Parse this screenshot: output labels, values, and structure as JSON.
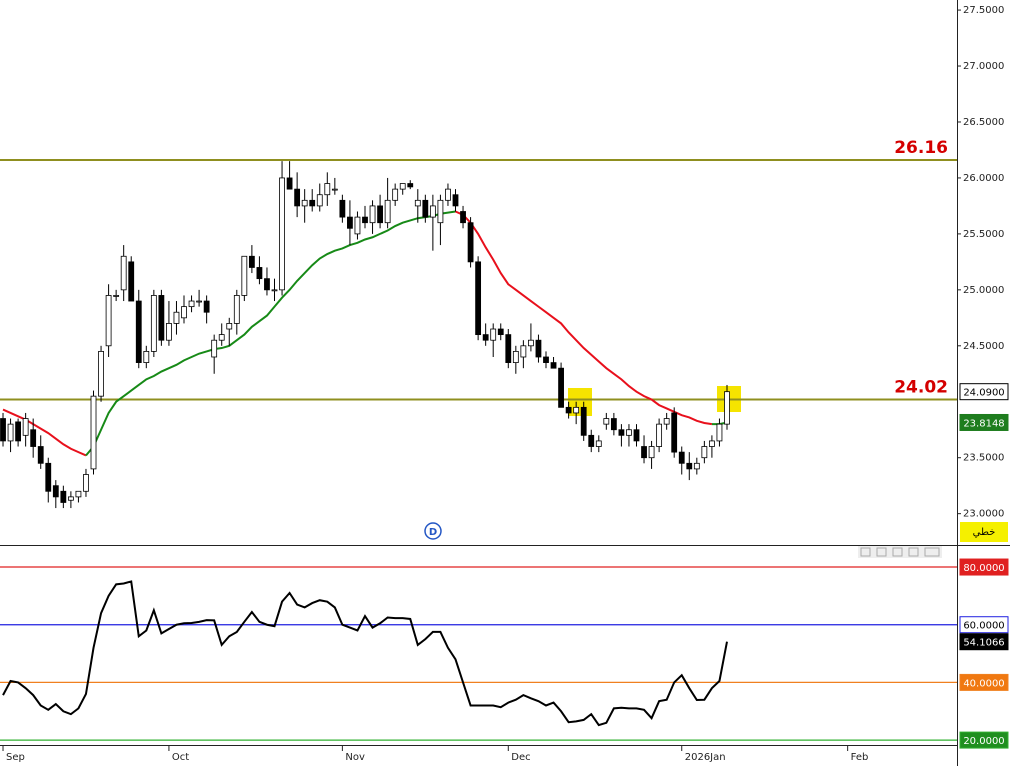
{
  "chart_data": [
    {
      "type": "candlestick",
      "categories": [
        null,
        null,
        null,
        null,
        null,
        null,
        null,
        null,
        null,
        null,
        null,
        null,
        null,
        null,
        null,
        null,
        null,
        null,
        null,
        null,
        null,
        null,
        null,
        null,
        null,
        null,
        null,
        null,
        null,
        null,
        null,
        null,
        null,
        null,
        null,
        null,
        null,
        null,
        null,
        null,
        null,
        null,
        null,
        null,
        null,
        null,
        null,
        null,
        null,
        null,
        null,
        null,
        null,
        null,
        null,
        null,
        null,
        null,
        null,
        null,
        null,
        null,
        null,
        null,
        null,
        null,
        null,
        null,
        null,
        null,
        null,
        null,
        null,
        null,
        null,
        null,
        null,
        null,
        null,
        null,
        null,
        null,
        null,
        null,
        null,
        null,
        null,
        null,
        null,
        null,
        null,
        null,
        null,
        null,
        null,
        null,
        null
      ],
      "open": [
        23.85,
        23.65,
        23.82,
        23.7,
        23.75,
        23.6,
        23.45,
        23.25,
        23.2,
        23.12,
        23.15,
        23.2,
        23.4,
        24.05,
        24.5,
        24.95,
        25.0,
        25.25,
        24.9,
        24.35,
        24.45,
        24.95,
        24.55,
        24.7,
        24.75,
        24.85,
        24.9,
        24.9,
        24.4,
        24.55,
        24.65,
        24.7,
        24.95,
        25.3,
        25.2,
        25.1,
        25.0,
        25.0,
        26.0,
        25.9,
        25.75,
        25.8,
        25.75,
        25.85,
        25.9,
        25.8,
        25.65,
        25.5,
        25.65,
        25.6,
        25.75,
        25.6,
        25.8,
        25.9,
        25.95,
        25.75,
        25.8,
        25.65,
        25.6,
        25.8,
        25.85,
        25.7,
        25.6,
        25.25,
        24.6,
        24.55,
        24.65,
        24.6,
        24.35,
        24.4,
        24.5,
        24.55,
        24.4,
        24.35,
        24.3,
        23.95,
        23.9,
        23.95,
        23.7,
        23.6,
        23.8,
        23.85,
        23.75,
        23.7,
        23.75,
        23.6,
        23.5,
        23.6,
        23.8,
        23.9,
        23.55,
        23.45,
        23.4,
        23.5,
        23.6,
        23.65,
        23.8
      ],
      "high": [
        23.9,
        23.85,
        23.85,
        23.9,
        23.85,
        23.7,
        23.5,
        23.3,
        23.25,
        23.2,
        23.2,
        23.4,
        24.1,
        24.5,
        25.05,
        25.0,
        25.4,
        25.3,
        25.0,
        24.5,
        25.0,
        25.0,
        24.9,
        24.9,
        24.95,
        24.95,
        25.0,
        24.95,
        24.6,
        24.7,
        24.75,
        25.0,
        25.3,
        25.4,
        25.3,
        25.2,
        25.1,
        26.15,
        26.15,
        26.05,
        25.9,
        25.9,
        25.95,
        26.05,
        26.0,
        25.85,
        25.8,
        25.7,
        25.75,
        25.8,
        25.85,
        26.0,
        25.95,
        25.95,
        25.98,
        25.9,
        25.85,
        25.85,
        25.85,
        25.95,
        25.9,
        25.75,
        25.65,
        25.3,
        24.7,
        24.7,
        24.7,
        24.65,
        24.5,
        24.55,
        24.7,
        24.6,
        24.45,
        24.4,
        24.35,
        24.0,
        24.0,
        24.0,
        23.75,
        23.7,
        23.9,
        23.9,
        23.8,
        23.8,
        23.8,
        23.7,
        23.65,
        23.85,
        23.9,
        23.95,
        23.6,
        23.55,
        23.5,
        23.65,
        23.7,
        23.85,
        24.15
      ],
      "low": [
        23.6,
        23.55,
        23.6,
        23.6,
        23.5,
        23.4,
        23.1,
        23.05,
        23.05,
        23.05,
        23.1,
        23.15,
        23.35,
        24.0,
        24.4,
        24.9,
        24.9,
        24.9,
        24.3,
        24.3,
        24.4,
        24.5,
        24.5,
        24.6,
        24.7,
        24.8,
        24.85,
        24.7,
        24.25,
        24.5,
        24.5,
        24.6,
        24.9,
        25.15,
        25.05,
        24.95,
        24.9,
        24.95,
        25.9,
        25.65,
        25.6,
        25.7,
        25.7,
        25.75,
        25.85,
        25.6,
        25.4,
        25.45,
        25.55,
        25.5,
        25.55,
        25.55,
        25.75,
        25.85,
        25.9,
        25.6,
        25.6,
        25.35,
        25.4,
        25.75,
        25.7,
        25.55,
        25.2,
        24.55,
        24.5,
        24.4,
        24.55,
        24.3,
        24.25,
        24.3,
        24.45,
        24.35,
        24.3,
        24.3,
        23.95,
        23.85,
        23.8,
        23.65,
        23.55,
        23.55,
        23.75,
        23.7,
        23.6,
        23.6,
        23.6,
        23.45,
        23.4,
        23.55,
        23.75,
        23.5,
        23.35,
        23.3,
        23.35,
        23.45,
        23.5,
        23.6,
        23.75
      ],
      "close": [
        23.65,
        23.8,
        23.65,
        23.85,
        23.6,
        23.45,
        23.2,
        23.15,
        23.1,
        23.15,
        23.2,
        23.35,
        24.05,
        24.45,
        24.95,
        24.95,
        25.3,
        24.9,
        24.35,
        24.45,
        24.95,
        24.55,
        24.7,
        24.8,
        24.85,
        24.9,
        24.9,
        24.8,
        24.55,
        24.6,
        24.7,
        24.95,
        25.3,
        25.2,
        25.1,
        25.0,
        25.0,
        26.0,
        25.9,
        25.75,
        25.8,
        25.75,
        25.85,
        25.95,
        25.9,
        25.65,
        25.55,
        25.65,
        25.6,
        25.75,
        25.6,
        25.8,
        25.9,
        25.95,
        25.92,
        25.8,
        25.65,
        25.75,
        25.8,
        25.9,
        25.75,
        25.6,
        25.25,
        24.6,
        24.55,
        24.65,
        24.6,
        24.35,
        24.45,
        24.5,
        24.55,
        24.4,
        24.35,
        24.3,
        23.95,
        23.9,
        23.95,
        23.7,
        23.6,
        23.65,
        23.85,
        23.75,
        23.7,
        23.75,
        23.65,
        23.5,
        23.6,
        23.8,
        23.85,
        23.55,
        23.45,
        23.4,
        23.45,
        23.6,
        23.65,
        23.8,
        24.09
      ],
      "up_color": "#ffffff",
      "down_color": "#000000",
      "ma": {
        "values": [
          23.93,
          23.9,
          23.87,
          23.84,
          23.8,
          23.76,
          23.72,
          23.67,
          23.62,
          23.58,
          23.55,
          23.52,
          23.6,
          23.75,
          23.9,
          24.0,
          24.05,
          24.1,
          24.15,
          24.2,
          24.23,
          24.27,
          24.3,
          24.33,
          24.37,
          24.4,
          24.43,
          24.45,
          24.47,
          24.48,
          24.5,
          24.55,
          24.6,
          24.67,
          24.72,
          24.77,
          24.85,
          24.93,
          25.0,
          25.08,
          25.15,
          25.22,
          25.28,
          25.32,
          25.35,
          25.37,
          25.4,
          25.42,
          25.45,
          25.47,
          25.5,
          25.53,
          25.57,
          25.6,
          25.62,
          25.64,
          25.65,
          25.66,
          25.68,
          25.69,
          25.7,
          25.67,
          25.6,
          25.5,
          25.38,
          25.27,
          25.15,
          25.05,
          25.0,
          24.95,
          24.9,
          24.85,
          24.8,
          24.75,
          24.7,
          24.62,
          24.55,
          24.48,
          24.42,
          24.36,
          24.3,
          24.25,
          24.2,
          24.14,
          24.09,
          24.05,
          24.02,
          23.97,
          23.94,
          23.91,
          23.88,
          23.86,
          23.83,
          23.81,
          23.8,
          23.8,
          23.8148
        ],
        "up_color": "#178a17",
        "down_color": "#e8101c",
        "tag_color": "#1e7d1e"
      },
      "levels": [
        26.16,
        24.02
      ],
      "level_color": "#8f8f1f",
      "level_label_color": "#d40000",
      "last_price": {
        "value": 24.09,
        "label": "24.0900"
      },
      "indicator_label": "خطي",
      "marker_label": "D",
      "xlim": [
        -0.4,
        126.5
      ],
      "ylim": [
        22.72,
        27.59
      ],
      "yticks": [
        {
          "value": 27.5,
          "label": "27.5000"
        },
        {
          "value": 27.0,
          "label": "27.0000"
        },
        {
          "value": 26.5,
          "label": "26.5000"
        },
        {
          "value": 26.0,
          "label": "26.0000"
        },
        {
          "value": 25.5,
          "label": "25.5000"
        },
        {
          "value": 25.0,
          "label": "25.0000"
        },
        {
          "value": 24.5,
          "label": "24.5000"
        },
        {
          "value": 23.5,
          "label": "23.5000"
        },
        {
          "value": 23.0,
          "label": "23.0000"
        }
      ]
    },
    {
      "type": "line",
      "color": "#000000",
      "values": [
        35.6,
        40.5,
        40,
        38,
        35.6,
        32,
        30.5,
        32.5,
        30,
        29,
        31,
        36,
        52,
        64,
        70,
        74,
        74.3,
        75,
        56,
        58,
        65,
        57,
        58.5,
        60,
        60.5,
        60.6,
        61,
        61.6,
        61.5,
        53,
        56,
        57.5,
        61,
        64.4,
        61,
        60,
        59.5,
        68,
        71,
        67,
        66,
        67.5,
        68.5,
        68,
        66,
        60,
        59,
        58,
        63,
        59,
        60.5,
        62.5,
        62.3,
        62.3,
        62,
        53,
        55,
        57.5,
        57.5,
        52,
        48,
        40,
        32,
        32,
        32,
        32,
        31.4,
        33,
        34,
        35.6,
        34.5,
        33.5,
        32,
        33,
        30,
        26.2,
        26.5,
        27,
        29,
        25.2,
        26,
        31,
        31.2,
        31,
        31,
        30.5,
        27.6,
        33.5,
        34,
        40,
        42.5,
        38,
        33.9,
        34,
        38,
        40.5,
        54.1066
      ],
      "ylim": [
        18.3,
        86.6
      ],
      "levels": [
        {
          "value": 80,
          "label": "80.0000",
          "color": "#e02020",
          "tag_fill": "#e02020",
          "tag_text": "#ffffff"
        },
        {
          "value": 60,
          "label": "60.0000",
          "color": "#2020e0",
          "tag_fill": "#ffffff",
          "tag_text": "#000000"
        },
        {
          "value": 40,
          "label": "40.0000",
          "color": "#f08020",
          "tag_fill": "#f07810",
          "tag_text": "#ffffff"
        },
        {
          "value": 20,
          "label": "20.0000",
          "color": "#30b030",
          "tag_fill": "#1f8f1f",
          "tag_text": "#ffffff"
        }
      ],
      "last_tag_color": "#000000",
      "xticks": [
        {
          "value": 0,
          "label": "Sep"
        },
        {
          "value": 22,
          "label": "Oct"
        },
        {
          "value": 45,
          "label": "Nov"
        },
        {
          "value": 67,
          "label": "Dec"
        },
        {
          "value": 90,
          "label": "2026Jan"
        },
        {
          "value": 112,
          "label": "Feb"
        }
      ]
    }
  ]
}
